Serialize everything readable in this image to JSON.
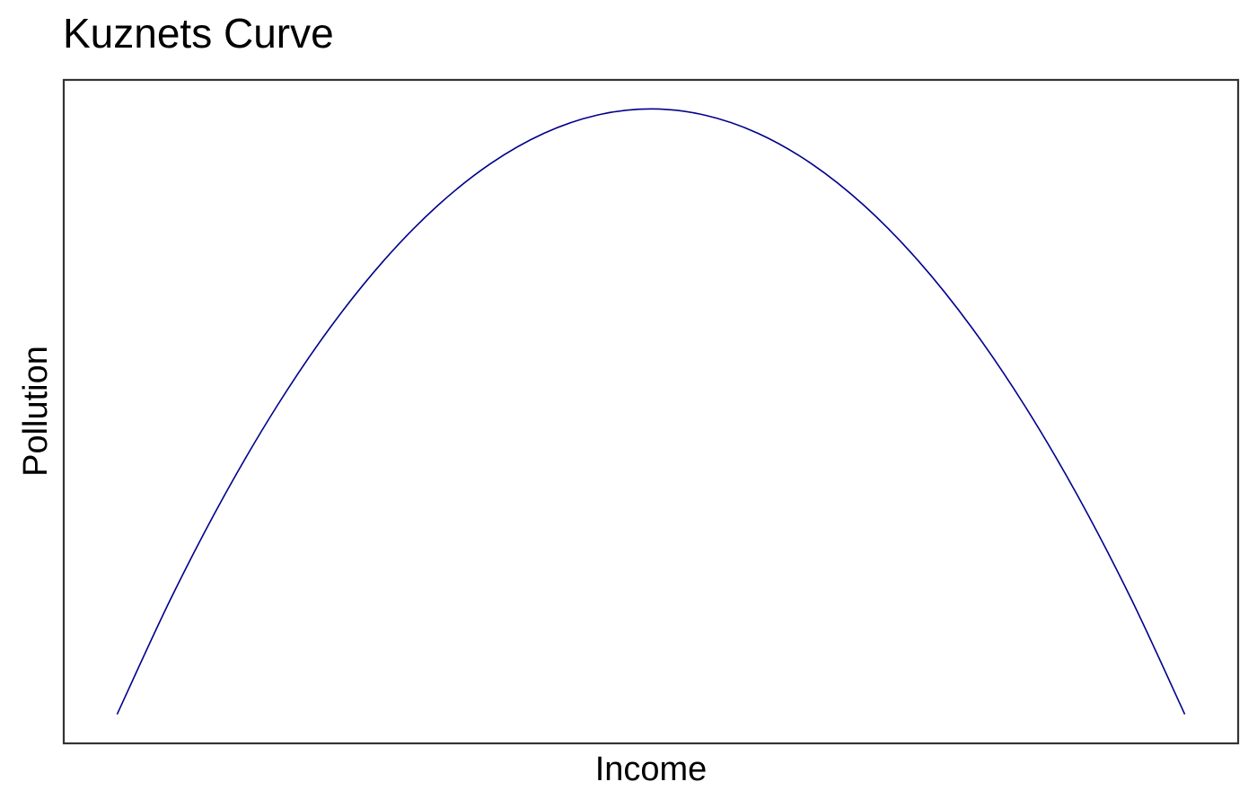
{
  "chart_data": {
    "type": "line",
    "title": "Kuznets Curve",
    "xlabel": "Income",
    "ylabel": "Pollution",
    "grid": false,
    "legend": "none",
    "xlim": [
      -0.05,
      1.05
    ],
    "ylim": [
      -0.048,
      1.048
    ],
    "x_ticks": [],
    "y_ticks": [],
    "series": [
      {
        "color": "#00008B",
        "x": [
          0,
          0.05,
          0.1,
          0.15,
          0.2,
          0.25,
          0.3,
          0.35,
          0.4,
          0.45,
          0.5,
          0.55,
          0.6,
          0.65,
          0.7,
          0.75,
          0.8,
          0.85,
          0.9,
          0.95,
          1
        ],
        "y": [
          0,
          0.19,
          0.36,
          0.51,
          0.64,
          0.75,
          0.84,
          0.91,
          0.96,
          0.99,
          1,
          0.99,
          0.96,
          0.91,
          0.84,
          0.75,
          0.64,
          0.51,
          0.36,
          0.19,
          0
        ]
      }
    ]
  }
}
